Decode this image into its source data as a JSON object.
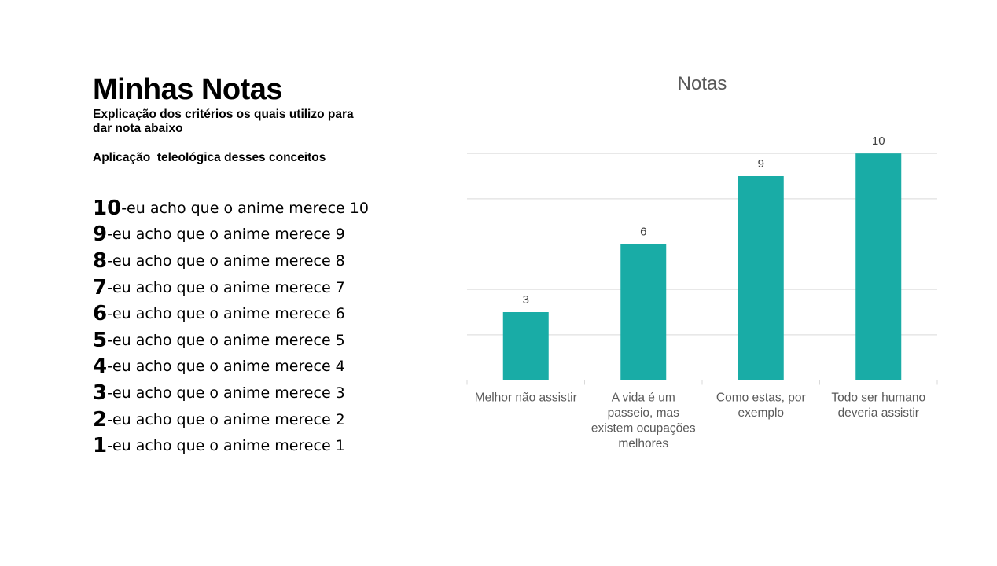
{
  "slide": {
    "title": "Minhas Notas",
    "subtitle": "Explicação dos critérios os quais utilizo para dar nota abaixo",
    "subtitle2": "Aplicação  teleológica desses conceitos"
  },
  "scale": [
    {
      "num": "10",
      "text": "-eu acho que o anime merece 10"
    },
    {
      "num": "9",
      "text": "-eu acho que o anime merece 9"
    },
    {
      "num": "8",
      "text": "-eu acho que o anime merece 8"
    },
    {
      "num": "7",
      "text": "-eu acho que o anime merece 7"
    },
    {
      "num": "6",
      "text": "-eu acho que o anime merece 6"
    },
    {
      "num": "5",
      "text": "-eu acho que o anime merece 5"
    },
    {
      "num": "4",
      "text": "-eu acho que o anime merece 4"
    },
    {
      "num": "3",
      "text": "-eu acho que o anime merece 3"
    },
    {
      "num": "2",
      "text": "-eu acho que o anime merece 2"
    },
    {
      "num": "1",
      "text": "-eu acho que o anime merece 1"
    }
  ],
  "chart_data": {
    "type": "bar",
    "title": "Notas",
    "categories": [
      "Melhor não assistir",
      "A vida é um passeio, mas existem ocupações melhores",
      "Como estas, por exemplo",
      "Todo ser humano deveria assistir"
    ],
    "category_lines": [
      [
        "Melhor não assistir"
      ],
      [
        "A vida é um",
        "passeio, mas",
        "existem ocupações",
        "melhores"
      ],
      [
        "Como estas, por",
        "exemplo"
      ],
      [
        "Todo ser humano",
        "deveria assistir"
      ]
    ],
    "values": [
      3,
      6,
      9,
      10
    ],
    "data_labels": [
      "3",
      "6",
      "9",
      "10"
    ],
    "ylim": [
      0,
      12
    ],
    "grid": true,
    "show_y_axis_labels": false,
    "bar_color": "#19ACA6",
    "grid_color": "#d9d9d9",
    "label_color": "#595959",
    "title_color": "#595959"
  }
}
